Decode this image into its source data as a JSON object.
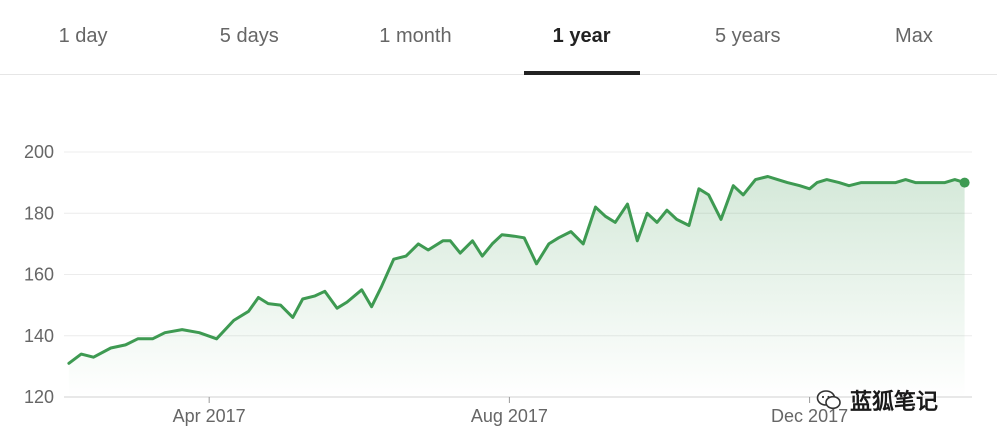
{
  "tabs": [
    {
      "label": "1 day",
      "active": false
    },
    {
      "label": "5 days",
      "active": false
    },
    {
      "label": "1 month",
      "active": false
    },
    {
      "label": "1 year",
      "active": true
    },
    {
      "label": "5 years",
      "active": false
    },
    {
      "label": "Max",
      "active": false
    }
  ],
  "watermark": {
    "text": "蓝狐笔记",
    "icon": "wechat-icon"
  },
  "colors": {
    "line": "#3e9a52",
    "fill": "#3e9a52",
    "grid": "#ececec",
    "axis": "#d0d0d0",
    "text": "#666666"
  },
  "chart_data": {
    "type": "area",
    "title": "",
    "xlabel": "",
    "ylabel": "",
    "ylim": [
      120,
      200
    ],
    "yticks": [
      120,
      140,
      160,
      180,
      200
    ],
    "xlim": [
      "2017-02-01",
      "2018-02-05"
    ],
    "xticks": [
      {
        "label": "Apr 2017",
        "date": "2017-04-01"
      },
      {
        "label": "Aug 2017",
        "date": "2017-08-01"
      },
      {
        "label": "Dec 2017",
        "date": "2017-12-01"
      }
    ],
    "grid": true,
    "series": [
      {
        "x": [
          "2017-02-03",
          "2017-02-08",
          "2017-02-13",
          "2017-02-20",
          "2017-02-26",
          "2017-03-03",
          "2017-03-09",
          "2017-03-14",
          "2017-03-21",
          "2017-03-28",
          "2017-04-04",
          "2017-04-11",
          "2017-04-17",
          "2017-04-21",
          "2017-04-25",
          "2017-04-30",
          "2017-05-05",
          "2017-05-09",
          "2017-05-14",
          "2017-05-18",
          "2017-05-23",
          "2017-05-27",
          "2017-06-02",
          "2017-06-06",
          "2017-06-10",
          "2017-06-15",
          "2017-06-20",
          "2017-06-25",
          "2017-06-29",
          "2017-07-05",
          "2017-07-08",
          "2017-07-12",
          "2017-07-17",
          "2017-07-21",
          "2017-07-25",
          "2017-07-29",
          "2017-08-03",
          "2017-08-07",
          "2017-08-12",
          "2017-08-17",
          "2017-08-21",
          "2017-08-26",
          "2017-08-31",
          "2017-09-05",
          "2017-09-09",
          "2017-09-13",
          "2017-09-18",
          "2017-09-22",
          "2017-09-26",
          "2017-09-30",
          "2017-10-04",
          "2017-10-08",
          "2017-10-13",
          "2017-10-17",
          "2017-10-21",
          "2017-10-26",
          "2017-10-31",
          "2017-11-04",
          "2017-11-09",
          "2017-11-14",
          "2017-11-18",
          "2017-11-22",
          "2017-11-27",
          "2017-12-01",
          "2017-12-04",
          "2017-12-08",
          "2017-12-13",
          "2017-12-17",
          "2017-12-22",
          "2017-12-27",
          "2018-01-02",
          "2018-01-05",
          "2018-01-09",
          "2018-01-13",
          "2018-01-17",
          "2018-01-21",
          "2018-01-25",
          "2018-01-29",
          "2018-02-02"
        ],
        "values": [
          131,
          134,
          133,
          136,
          137,
          139,
          139,
          141,
          142,
          141,
          139,
          145,
          148,
          152.5,
          150.5,
          150,
          146,
          152,
          153,
          154.5,
          149,
          151,
          155,
          149.5,
          156,
          165,
          166,
          170,
          168,
          171,
          171,
          167,
          171,
          166,
          170,
          173,
          172.5,
          172,
          163.5,
          170,
          172,
          174,
          170,
          182,
          179,
          177,
          183,
          171,
          180,
          177,
          181,
          178,
          176,
          188,
          186,
          178,
          189,
          186,
          191,
          192,
          191,
          190,
          189,
          188,
          190,
          191,
          190,
          189,
          190,
          190,
          190,
          190,
          191,
          190,
          190,
          190,
          190,
          191,
          190
        ]
      }
    ]
  }
}
